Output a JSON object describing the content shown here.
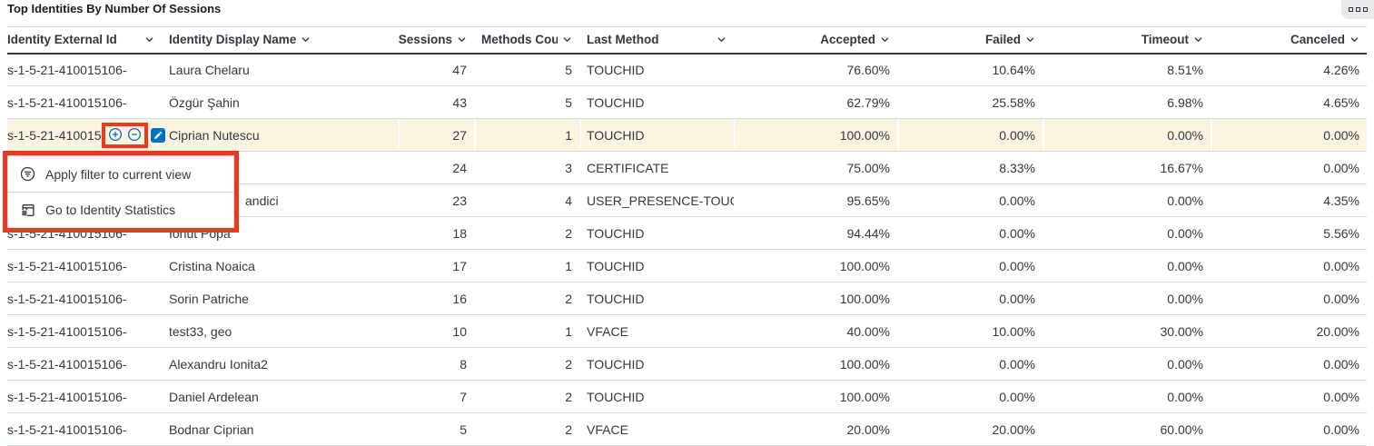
{
  "panel": {
    "title": "Top Identities By Number Of Sessions"
  },
  "table": {
    "columns": [
      {
        "id": "external_id",
        "label": "Identity External Id",
        "align": "left",
        "chevron_at_end": true
      },
      {
        "id": "display_name",
        "label": "Identity Display Name",
        "align": "left",
        "clip": "name"
      },
      {
        "id": "sessions",
        "label": "Sessions",
        "align": "right"
      },
      {
        "id": "methods_count",
        "label": "Methods Count",
        "align": "right",
        "clip": "methods"
      },
      {
        "id": "last_method",
        "label": "Last Method",
        "align": "left",
        "chevron_at_end": true
      },
      {
        "id": "accepted",
        "label": "Accepted",
        "align": "right"
      },
      {
        "id": "failed",
        "label": "Failed",
        "align": "right"
      },
      {
        "id": "timeout",
        "label": "Timeout",
        "align": "right"
      },
      {
        "id": "canceled",
        "label": "Canceled",
        "align": "right"
      }
    ],
    "rows": [
      {
        "cells": [
          "s-1-5-21-410015106-",
          "Laura Chelaru",
          "47",
          "5",
          "TOUCHID",
          "76.60%",
          "10.64%",
          "8.51%",
          "4.26%"
        ]
      },
      {
        "cells": [
          "s-1-5-21-410015106-",
          "Özgür Şahin",
          "43",
          "5",
          "TOUCHID",
          "62.79%",
          "25.58%",
          "6.98%",
          "4.65%"
        ]
      },
      {
        "cells": [
          "s-1-5-21-410015106-",
          "Ciprian Nutescu",
          "27",
          "1",
          "TOUCHID",
          "100.00%",
          "0.00%",
          "0.00%",
          "0.00%"
        ],
        "highlighted": true
      },
      {
        "cells": [
          "",
          "",
          "24",
          "3",
          "CERTIFICATE",
          "75.00%",
          "8.33%",
          "16.67%",
          "0.00%"
        ]
      },
      {
        "cells": [
          "",
          "andici",
          "23",
          "4",
          "USER_PRESENCE-TOUC",
          "95.65%",
          "0.00%",
          "0.00%",
          "4.35%"
        ],
        "name_offset": true
      },
      {
        "cells": [
          "s-1-5-21-410015106-",
          "Ionut Popa",
          "18",
          "2",
          "TOUCHID",
          "94.44%",
          "0.00%",
          "0.00%",
          "5.56%"
        ]
      },
      {
        "cells": [
          "s-1-5-21-410015106-",
          "Cristina Noaica",
          "17",
          "1",
          "TOUCHID",
          "100.00%",
          "0.00%",
          "0.00%",
          "0.00%"
        ]
      },
      {
        "cells": [
          "s-1-5-21-410015106-",
          "Sorin Patriche",
          "16",
          "2",
          "TOUCHID",
          "100.00%",
          "0.00%",
          "0.00%",
          "0.00%"
        ]
      },
      {
        "cells": [
          "s-1-5-21-410015106-",
          "test33, geo",
          "10",
          "1",
          "VFACE",
          "40.00%",
          "10.00%",
          "30.00%",
          "20.00%"
        ]
      },
      {
        "cells": [
          "s-1-5-21-410015106-",
          "Alexandru Ionita2",
          "8",
          "2",
          "TOUCHID",
          "100.00%",
          "0.00%",
          "0.00%",
          "0.00%"
        ]
      },
      {
        "cells": [
          "s-1-5-21-410015106-",
          "Daniel Ardelean",
          "7",
          "2",
          "TOUCHID",
          "100.00%",
          "0.00%",
          "0.00%",
          "0.00%"
        ]
      },
      {
        "cells": [
          "s-1-5-21-410015106-",
          "Bodnar Ciprian",
          "5",
          "2",
          "VFACE",
          "20.00%",
          "20.00%",
          "60.00%",
          "0.00%"
        ]
      }
    ]
  },
  "row_controls": {
    "filter_for_icon": "plus-in-circle",
    "filter_out_icon": "minus-in-circle",
    "edit_icon": "pencil"
  },
  "context_menu": {
    "items": [
      {
        "icon": "filter-in-circle",
        "label": "Apply filter to current view"
      },
      {
        "icon": "identity-statistics",
        "label": "Go to Identity Statistics"
      }
    ]
  },
  "colors": {
    "accent_blue": "#0071c2",
    "annotation_red": "#e83a1e",
    "highlight_row": "#fcf4de"
  }
}
